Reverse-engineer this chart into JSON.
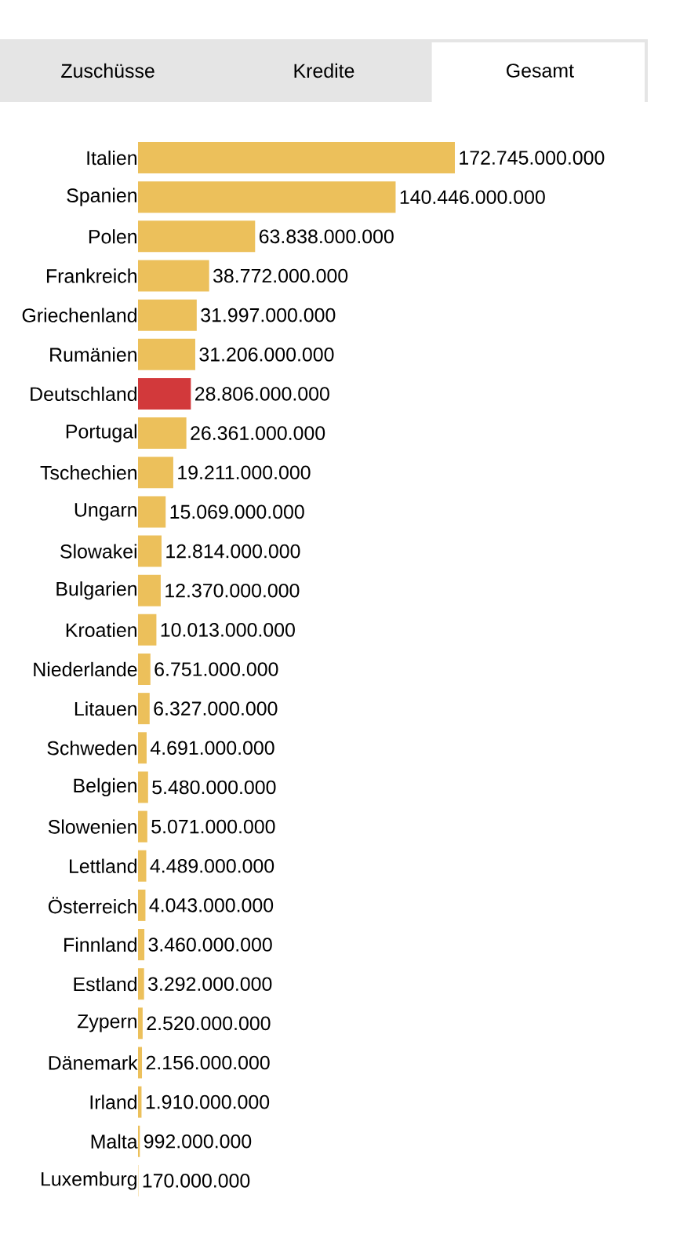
{
  "chart_data": {
    "type": "bar",
    "orientation": "horizontal",
    "annotations": [
      "Zuschüsse",
      "Kredite",
      "Gesamt"
    ],
    "categories": [
      "Italien",
      "Spanien",
      "Polen",
      "Frankreich",
      "Griechenland",
      "Rumänien",
      "Deutschland",
      "Portugal",
      "Tschechien",
      "Ungarn",
      "Slowakei",
      "Bulgarien",
      "Kroatien",
      "Niederlande",
      "Litauen",
      "Schweden",
      "Belgien",
      "Slowenien",
      "Lettland",
      "Österreich",
      "Finnland",
      "Estland",
      "Zypern",
      "Dänemark",
      "Irland",
      "Malta",
      "Luxemburg"
    ],
    "values": [
      172745000000,
      140446000000,
      63838000000,
      38772000000,
      31997000000,
      31206000000,
      28806000000,
      26361000000,
      19211000000,
      15069000000,
      12814000000,
      12370000000,
      10013000000,
      6751000000,
      6327000000,
      4691000000,
      5480000000,
      5071000000,
      4489000000,
      4043000000,
      3460000000,
      3292000000,
      2520000000,
      2156000000,
      1910000000,
      992000000,
      170000000
    ],
    "value_labels": [
      "172.745.000.000",
      "140.446.000.000",
      "63.838.000.000",
      "38.772.000.000",
      "31.997.000.000",
      "31.206.000.000",
      "28.806.000.000",
      "26.361.000.000",
      "19.211.000.000",
      "15.069.000.000",
      "12.814.000.000",
      "12.370.000.000",
      "10.013.000.000",
      "6.751.000.000",
      "6.327.000.000",
      "4.691.000.000",
      "5.480.000.000",
      "5.071.000.000",
      "4.489.000.000",
      "4.043.000.000",
      "3.460.000.000",
      "3.292.000.000",
      "2.520.000.000",
      "2.156.000.000",
      "1.910.000.000",
      "992.000.000",
      "170.000.000"
    ],
    "colors": [
      "#ecc05b",
      "#ecc05b",
      "#ecc05b",
      "#ecc05b",
      "#ecc05b",
      "#ecc05b",
      "#d2393b",
      "#ecc05b",
      "#ecc05b",
      "#ecc05b",
      "#ecc05b",
      "#ecc05b",
      "#ecc05b",
      "#ecc05b",
      "#ecc05b",
      "#ecc05b",
      "#ecc05b",
      "#ecc05b",
      "#ecc05b",
      "#ecc05b",
      "#ecc05b",
      "#ecc05b",
      "#ecc05b",
      "#ecc05b",
      "#ecc05b",
      "#ecc05b",
      "#ecc05b"
    ]
  }
}
